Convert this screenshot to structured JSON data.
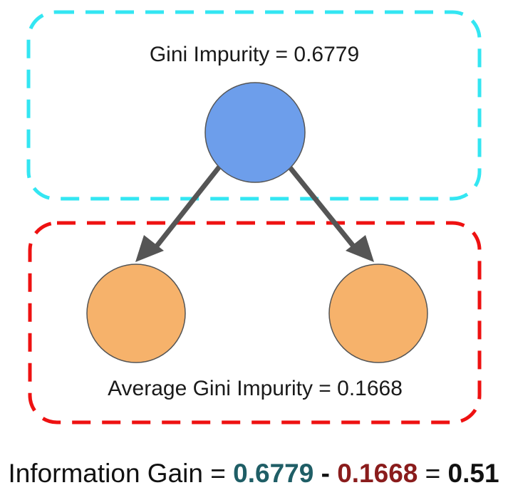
{
  "root_group": {
    "label": "Gini Impurity = 0.6779",
    "border_color": "#33e6f2"
  },
  "child_group": {
    "label": "Average Gini Impurity = 0.1668",
    "border_color": "#ee1111"
  },
  "nodes": {
    "root_fill": "#6d9eeb",
    "child_fill": "#f6b26b",
    "stroke": "#555555"
  },
  "edge_color": "#555555",
  "formula": {
    "prefix": "Information Gain = ",
    "parent_value": "0.6779",
    "parent_color": "#1f5e66",
    "minus": " - ",
    "child_value": "0.1668",
    "child_color": "#8a1c1c",
    "equals": " = ",
    "result": "0.51"
  }
}
